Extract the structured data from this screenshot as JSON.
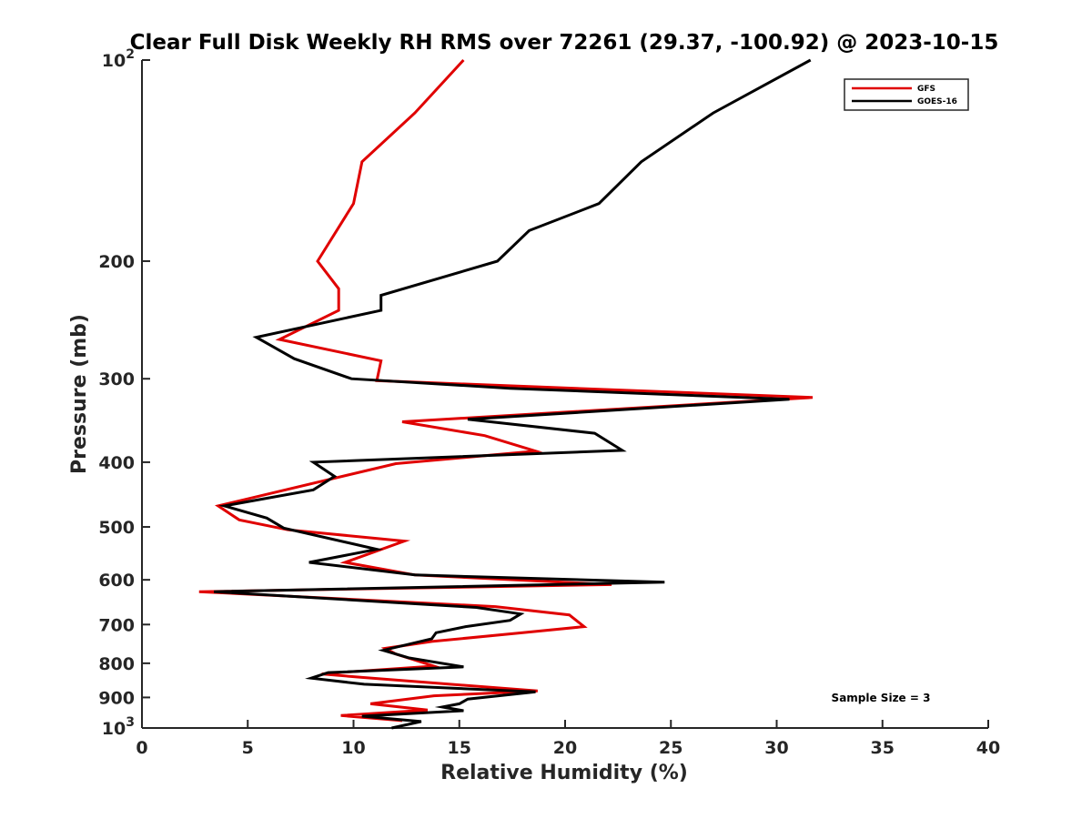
{
  "chart_data": {
    "type": "line",
    "title": "Clear Full Disk Weekly RH RMS over 72261 (29.37, -100.92) @ 2023-10-15",
    "xlabel": "Relative Humidity (%)",
    "ylabel": "Pressure (mb)",
    "xlim": [
      0,
      40
    ],
    "ylim": [
      100,
      1000
    ],
    "yscale": "log",
    "y_reversed": true,
    "grid": false,
    "x_ticks": [
      0,
      5,
      10,
      15,
      20,
      25,
      30,
      35,
      40
    ],
    "x_tick_labels": [
      "0",
      "5",
      "10",
      "15",
      "20",
      "25",
      "30",
      "35",
      "40"
    ],
    "y_ticks": [
      100,
      200,
      300,
      400,
      500,
      600,
      700,
      800,
      900,
      1000
    ],
    "y_tick_labels": [
      "10^2",
      "200",
      "300",
      "400",
      "500",
      "600",
      "700",
      "800",
      "900",
      "10^3"
    ],
    "legend_position": "top-right",
    "annotation": "Sample Size = 3",
    "series": [
      {
        "name": "GFS",
        "color": "#e00000",
        "x": [
          15.2,
          12.9,
          10.4,
          10.0,
          8.3,
          9.3,
          9.3,
          6.5,
          11.3,
          11.1,
          31.7,
          12.3,
          16.2,
          18.6,
          12.0,
          3.6,
          4.6,
          6.9,
          12.4,
          9.6,
          12.9,
          22.2,
          2.7,
          16.7,
          20.2,
          20.9,
          18.0,
          13.7,
          11.5,
          12.0,
          13.8,
          9.1,
          8.5,
          10.4,
          18.7,
          13.8,
          10.8,
          13.5,
          9.4,
          12.3
        ],
        "y": [
          100,
          120,
          142,
          164,
          200,
          220,
          237,
          262,
          282,
          302,
          320,
          348,
          365,
          385,
          402,
          465,
          488,
          505,
          525,
          565,
          590,
          610,
          625,
          658,
          677,
          705,
          720,
          742,
          760,
          775,
          808,
          827,
          830,
          840,
          880,
          895,
          920,
          940,
          958,
          975
        ]
      },
      {
        "name": "GOES-16",
        "color": "#000000",
        "x": [
          31.6,
          27.0,
          23.6,
          21.6,
          18.3,
          16.8,
          11.3,
          11.3,
          5.4,
          7.2,
          9.9,
          17.4,
          30.6,
          15.4,
          21.4,
          22.7,
          8.1,
          9.1,
          8.1,
          3.9,
          5.9,
          6.7,
          11.1,
          7.9,
          12.9,
          24.7,
          3.4,
          15.8,
          17.9,
          17.4,
          15.3,
          13.9,
          13.7,
          11.4,
          12.6,
          15.2,
          8.8,
          8.0,
          10.5,
          18.6,
          15.4,
          15.0,
          14.2,
          15.2,
          10.4,
          13.2,
          11.8
        ],
        "y": [
          100,
          120,
          142,
          164,
          180,
          200,
          225,
          237,
          260,
          280,
          300,
          310,
          322,
          345,
          362,
          384,
          400,
          420,
          440,
          465,
          485,
          502,
          540,
          565,
          590,
          605,
          625,
          660,
          675,
          690,
          705,
          720,
          735,
          765,
          785,
          810,
          826,
          842,
          860,
          883,
          905,
          920,
          930,
          942,
          960,
          978,
          1000
        ]
      }
    ]
  }
}
